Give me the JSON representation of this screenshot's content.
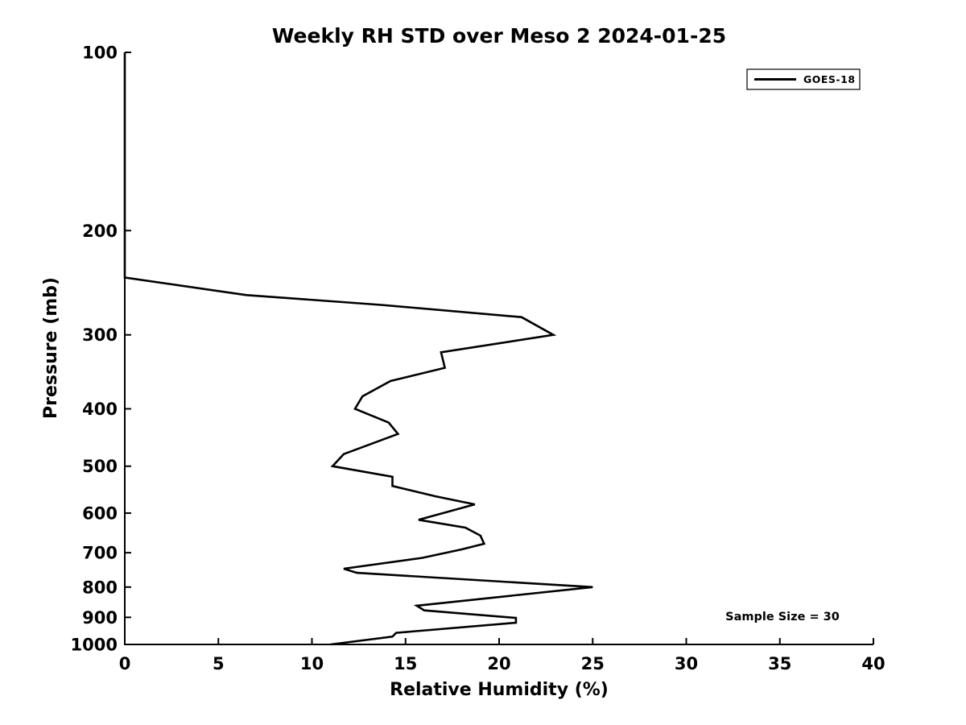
{
  "figure": {
    "background": "#ffffff",
    "line_color": "#000000",
    "axis_color": "#000000"
  },
  "chart_data": {
    "type": "line",
    "title": "Weekly RH STD over Meso 2 2024-01-25",
    "xlabel": "Relative Humidity (%)",
    "ylabel": "Pressure (mb)",
    "xlim": [
      0,
      40
    ],
    "xticks": [
      0,
      5,
      10,
      15,
      20,
      25,
      30,
      35,
      40
    ],
    "ylim": [
      100,
      1000
    ],
    "yticks": [
      100,
      200,
      300,
      400,
      500,
      600,
      700,
      800,
      900,
      1000
    ],
    "yscale": "log",
    "ydir": "reverse",
    "grid": false,
    "tick_direction": "in",
    "legend": {
      "position": "top-right",
      "entries": [
        {
          "label": "GOES-18",
          "color": "#000000"
        }
      ]
    },
    "annotation": {
      "text": "Sample Size = 30"
    },
    "series": [
      {
        "name": "GOES-18",
        "color": "#000000",
        "line_width": 2.6,
        "points_pressure_rh": [
          [
            100,
            0.0
          ],
          [
            150,
            0.0
          ],
          [
            200,
            0.0
          ],
          [
            240,
            0.0
          ],
          [
            257,
            6.5
          ],
          [
            267,
            13.7
          ],
          [
            280,
            21.2
          ],
          [
            300,
            22.9
          ],
          [
            321,
            16.9
          ],
          [
            341,
            17.1
          ],
          [
            359,
            14.2
          ],
          [
            381,
            12.7
          ],
          [
            400,
            12.3
          ],
          [
            422,
            14.1
          ],
          [
            441,
            14.6
          ],
          [
            477,
            11.7
          ],
          [
            500,
            11.1
          ],
          [
            521,
            14.3
          ],
          [
            540,
            14.3
          ],
          [
            562,
            16.6
          ],
          [
            580,
            18.7
          ],
          [
            616,
            15.7
          ],
          [
            635,
            18.2
          ],
          [
            655,
            19.0
          ],
          [
            676,
            19.2
          ],
          [
            691,
            18.0
          ],
          [
            714,
            15.9
          ],
          [
            745,
            11.7
          ],
          [
            757,
            12.4
          ],
          [
            800,
            25.0
          ],
          [
            860,
            15.6
          ],
          [
            876,
            16.0
          ],
          [
            902,
            20.9
          ],
          [
            919,
            20.9
          ],
          [
            956,
            14.5
          ],
          [
            970,
            14.3
          ],
          [
            1000,
            11.0
          ]
        ]
      }
    ]
  }
}
